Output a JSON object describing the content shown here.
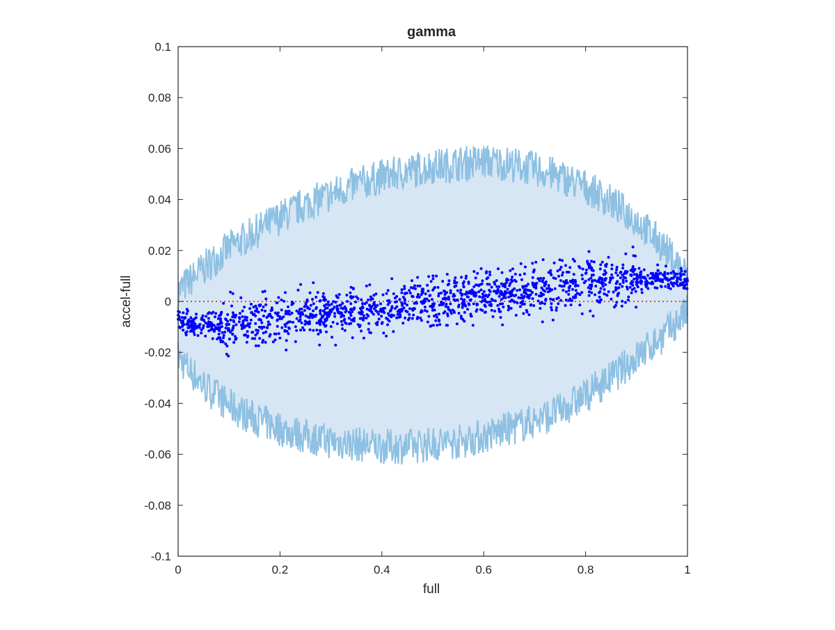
{
  "chart_data": {
    "type": "scatter",
    "title": "gamma",
    "xlabel": "full",
    "ylabel": "accel-full",
    "xlim": [
      0,
      1
    ],
    "ylim": [
      -0.1,
      0.1
    ],
    "x_ticks": [
      "0",
      "0.2",
      "0.4",
      "0.6",
      "0.8",
      "1"
    ],
    "y_ticks": [
      "-0.1",
      "-0.08",
      "-0.06",
      "-0.04",
      "-0.02",
      "0",
      "0.02",
      "0.04",
      "0.06",
      "0.08",
      "0.1"
    ],
    "grid": false,
    "legend": "none",
    "colors": {
      "band_fill": "#d6e6f4",
      "band_line": "#8dc0e2",
      "points": "#0000ff",
      "reference_line": "#ff0000",
      "axes": "#262626"
    },
    "reference_line_y": 0,
    "band": {
      "x": [
        0,
        0.05,
        0.1,
        0.15,
        0.2,
        0.25,
        0.3,
        0.35,
        0.4,
        0.45,
        0.5,
        0.55,
        0.6,
        0.65,
        0.7,
        0.75,
        0.8,
        0.85,
        0.9,
        0.95,
        1.0
      ],
      "upper": [
        0.004,
        0.013,
        0.021,
        0.027,
        0.033,
        0.038,
        0.042,
        0.046,
        0.049,
        0.051,
        0.053,
        0.054,
        0.055,
        0.054,
        0.052,
        0.049,
        0.045,
        0.039,
        0.032,
        0.022,
        0.01
      ],
      "lower": [
        -0.022,
        -0.033,
        -0.041,
        -0.046,
        -0.05,
        -0.053,
        -0.055,
        -0.056,
        -0.057,
        -0.057,
        -0.056,
        -0.055,
        -0.053,
        -0.05,
        -0.047,
        -0.043,
        -0.037,
        -0.03,
        -0.022,
        -0.014,
        -0.004
      ]
    },
    "points": {
      "x": [
        0.0,
        0.02,
        0.04,
        0.06,
        0.08,
        0.1,
        0.12,
        0.14,
        0.16,
        0.18,
        0.2,
        0.22,
        0.24,
        0.26,
        0.28,
        0.3,
        0.32,
        0.34,
        0.36,
        0.38,
        0.4,
        0.42,
        0.44,
        0.46,
        0.48,
        0.5,
        0.52,
        0.54,
        0.56,
        0.58,
        0.6,
        0.62,
        0.64,
        0.66,
        0.68,
        0.7,
        0.72,
        0.74,
        0.76,
        0.78,
        0.8,
        0.82,
        0.84,
        0.86,
        0.88,
        0.9,
        0.92,
        0.94,
        0.96,
        0.98,
        1.0
      ],
      "y": [
        -0.007,
        -0.009,
        -0.01,
        -0.008,
        -0.011,
        -0.009,
        -0.008,
        -0.01,
        -0.007,
        -0.009,
        -0.006,
        -0.008,
        -0.006,
        -0.005,
        -0.007,
        -0.004,
        -0.006,
        -0.003,
        -0.005,
        -0.002,
        -0.004,
        -0.002,
        -0.001,
        -0.003,
        0.0,
        -0.001,
        0.001,
        0.002,
        0.0,
        0.003,
        0.002,
        0.004,
        0.003,
        0.005,
        0.002,
        0.006,
        0.004,
        0.005,
        0.007,
        0.006,
        0.008,
        0.006,
        0.009,
        0.007,
        0.008,
        0.009,
        0.008,
        0.01,
        0.009,
        0.009,
        0.008
      ]
    }
  }
}
